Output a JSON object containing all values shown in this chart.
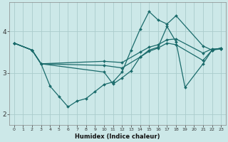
{
  "background_color": "#cce8e8",
  "grid_color": "#aacccc",
  "line_color": "#1a6b6b",
  "xlabel": "Humidex (Indice chaleur)",
  "xlim": [
    -0.5,
    23.5
  ],
  "ylim": [
    1.75,
    4.7
  ],
  "yticks": [
    2,
    3,
    4
  ],
  "xticks": [
    0,
    1,
    2,
    3,
    4,
    5,
    6,
    7,
    8,
    9,
    10,
    11,
    12,
    13,
    14,
    15,
    16,
    17,
    18,
    19,
    20,
    21,
    22,
    23
  ],
  "series": [
    {
      "x": [
        0,
        2,
        3,
        4,
        5,
        6,
        7,
        8,
        9,
        10,
        11,
        12,
        13,
        14,
        15,
        16,
        17,
        18,
        21,
        22,
        23
      ],
      "y": [
        3.72,
        3.55,
        3.22,
        2.68,
        2.43,
        2.18,
        2.32,
        2.38,
        2.55,
        2.72,
        2.78,
        3.02,
        3.55,
        4.05,
        4.48,
        4.28,
        4.18,
        4.38,
        3.65,
        3.55,
        3.6
      ]
    },
    {
      "x": [
        0,
        2,
        3,
        10,
        11,
        12,
        13,
        14,
        15,
        16,
        17,
        18,
        19,
        21,
        22,
        23
      ],
      "y": [
        3.72,
        3.55,
        3.22,
        3.02,
        2.73,
        2.88,
        3.05,
        3.38,
        3.55,
        3.62,
        4.12,
        3.75,
        2.65,
        3.22,
        3.55,
        3.6
      ]
    },
    {
      "x": [
        0,
        2,
        3,
        10,
        12,
        14,
        15,
        16,
        17,
        18,
        21,
        22,
        23
      ],
      "y": [
        3.72,
        3.55,
        3.22,
        3.28,
        3.25,
        3.5,
        3.62,
        3.68,
        3.8,
        3.82,
        3.48,
        3.58,
        3.58
      ]
    },
    {
      "x": [
        0,
        2,
        3,
        10,
        12,
        14,
        15,
        16,
        17,
        18,
        21,
        22,
        23
      ],
      "y": [
        3.72,
        3.55,
        3.22,
        3.18,
        3.12,
        3.38,
        3.52,
        3.6,
        3.72,
        3.68,
        3.3,
        3.55,
        3.58
      ]
    }
  ]
}
